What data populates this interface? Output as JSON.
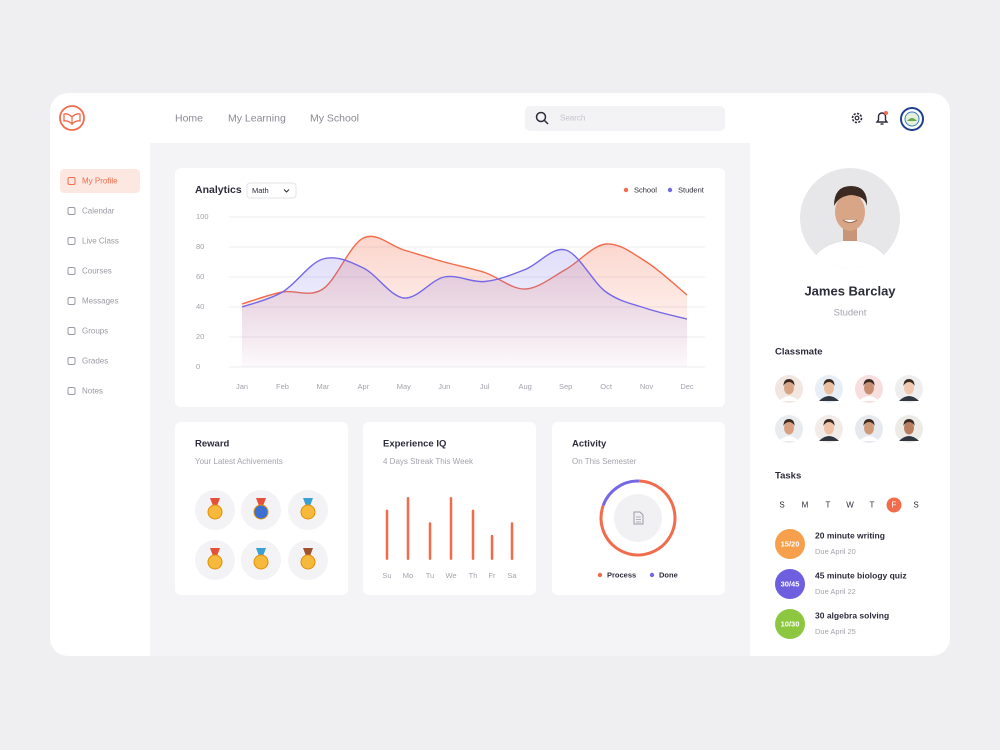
{
  "nav": {
    "links": [
      "Home",
      "My Learning",
      "My School"
    ],
    "search_placeholder": "Search"
  },
  "sidebar": {
    "items": [
      "My Profile",
      "Calendar",
      "Live Class",
      "Courses",
      "Messages",
      "Groups",
      "Grades",
      "Notes"
    ],
    "active": 0
  },
  "chart_data": [
    {
      "type": "line",
      "title": "Analytics",
      "filter": "Math",
      "categories": [
        "Jan",
        "Feb",
        "Mar",
        "Apr",
        "May",
        "Jun",
        "Jul",
        "Aug",
        "Sep",
        "Oct",
        "Nov",
        "Dec"
      ],
      "ylim": [
        0,
        100
      ],
      "yticks": [
        0,
        20,
        40,
        60,
        80,
        100
      ],
      "grid": true,
      "series": [
        {
          "name": "School",
          "color": "#f26b4b",
          "values": [
            42,
            50,
            52,
            86,
            78,
            70,
            63,
            52,
            65,
            82,
            70,
            48
          ]
        },
        {
          "name": "Student",
          "color": "#7468e6",
          "values": [
            40,
            50,
            72,
            66,
            46,
            60,
            57,
            65,
            78,
            50,
            39,
            32
          ]
        }
      ]
    },
    {
      "type": "bar",
      "title": "Experience IQ",
      "subtitle": "4 Days Streak This Week",
      "categories": [
        "Su",
        "Mo",
        "Tu",
        "We",
        "Th",
        "Fr",
        "Sa"
      ],
      "values": [
        8,
        10,
        6,
        10,
        8,
        4,
        6
      ],
      "ylim": [
        0,
        10
      ],
      "color": "#f26b4b"
    },
    {
      "type": "donut",
      "title": "Activity",
      "subtitle": "On This Semester",
      "categories": [
        "Process",
        "Done"
      ],
      "values": [
        80,
        20
      ],
      "colors": [
        "#f26b4b",
        "#7468e6"
      ]
    }
  ],
  "reward": {
    "title": "Reward",
    "subtitle": "Your Latest Achivements"
  },
  "profile": {
    "name": "James Barclay",
    "role": "Student"
  },
  "classmates": {
    "title": "Classmate"
  },
  "tasks": {
    "title": "Tasks",
    "days": [
      "S",
      "M",
      "T",
      "W",
      "T",
      "F",
      "S"
    ],
    "active_day": 5,
    "items": [
      {
        "progress": "15/20",
        "title": "20 minute writing",
        "due": "Due April 20",
        "color": "#f6a04b"
      },
      {
        "progress": "30/45",
        "title": "45 minute biology quiz",
        "due": "Due April 22",
        "color": "#6e5fe0"
      },
      {
        "progress": "10/30",
        "title": "30 algebra solving",
        "due": "Due April 25",
        "color": "#8dc63f"
      }
    ]
  }
}
